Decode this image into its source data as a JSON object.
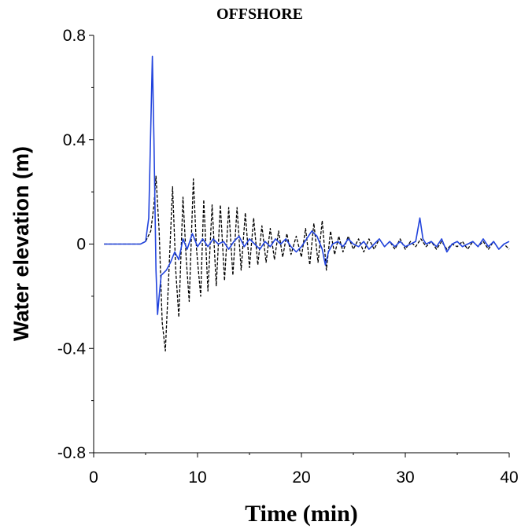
{
  "chart_data": {
    "type": "line",
    "title": "OFFSHORE",
    "xlabel": "Time (min)",
    "ylabel": "Water elevation (m)",
    "xlim": [
      0,
      40
    ],
    "ylim": [
      -0.8,
      0.8
    ],
    "xticks": [
      0,
      10,
      20,
      30,
      40
    ],
    "yticks": [
      -0.8,
      -0.4,
      0,
      0.4,
      0.8
    ],
    "ytick_labels": [
      "-0.8",
      "-0.4",
      "0",
      "0.4",
      "0.8"
    ],
    "xtick_labels": [
      "0",
      "10",
      "20",
      "30",
      "40"
    ],
    "grid": false,
    "legend": "none",
    "series": [
      {
        "style": "solid",
        "color": "#2244dd",
        "points": [
          [
            1.0,
            0.0
          ],
          [
            4.5,
            0.0
          ],
          [
            5.0,
            0.01
          ],
          [
            5.3,
            0.1
          ],
          [
            5.5,
            0.45
          ],
          [
            5.65,
            0.72
          ],
          [
            5.8,
            0.4
          ],
          [
            6.0,
            -0.1
          ],
          [
            6.15,
            -0.27
          ],
          [
            6.3,
            -0.2
          ],
          [
            6.5,
            -0.12
          ],
          [
            7.0,
            -0.1
          ],
          [
            7.4,
            -0.07
          ],
          [
            7.8,
            -0.03
          ],
          [
            8.2,
            -0.06
          ],
          [
            8.6,
            0.02
          ],
          [
            9.0,
            -0.02
          ],
          [
            9.5,
            0.04
          ],
          [
            10.0,
            -0.01
          ],
          [
            10.5,
            0.02
          ],
          [
            11.0,
            -0.01
          ],
          [
            11.5,
            0.02
          ],
          [
            12.0,
            0.0
          ],
          [
            12.5,
            0.01
          ],
          [
            13.0,
            -0.02
          ],
          [
            13.5,
            0.01
          ],
          [
            14.0,
            0.03
          ],
          [
            14.5,
            -0.01
          ],
          [
            15.0,
            0.02
          ],
          [
            15.5,
            0.0
          ],
          [
            16.0,
            -0.02
          ],
          [
            16.5,
            0.01
          ],
          [
            17.0,
            -0.01
          ],
          [
            17.5,
            0.02
          ],
          [
            18.0,
            0.0
          ],
          [
            18.5,
            0.02
          ],
          [
            19.0,
            -0.01
          ],
          [
            19.5,
            -0.03
          ],
          [
            20.0,
            -0.01
          ],
          [
            20.5,
            0.02
          ],
          [
            21.0,
            0.05
          ],
          [
            21.5,
            0.03
          ],
          [
            22.0,
            -0.02
          ],
          [
            22.3,
            -0.08
          ],
          [
            22.6,
            -0.03
          ],
          [
            23.0,
            0.0
          ],
          [
            23.5,
            0.01
          ],
          [
            24.0,
            -0.01
          ],
          [
            24.5,
            0.02
          ],
          [
            25.0,
            0.0
          ],
          [
            25.5,
            -0.01
          ],
          [
            26.0,
            0.01
          ],
          [
            26.5,
            -0.02
          ],
          [
            27.0,
            0.0
          ],
          [
            27.5,
            0.02
          ],
          [
            28.0,
            -0.01
          ],
          [
            28.5,
            0.01
          ],
          [
            29.0,
            -0.01
          ],
          [
            29.5,
            0.01
          ],
          [
            30.0,
            -0.01
          ],
          [
            30.5,
            0.0
          ],
          [
            31.0,
            0.01
          ],
          [
            31.4,
            0.1
          ],
          [
            31.7,
            0.02
          ],
          [
            32.0,
            0.0
          ],
          [
            32.5,
            0.01
          ],
          [
            33.0,
            -0.01
          ],
          [
            33.5,
            0.02
          ],
          [
            34.0,
            -0.03
          ],
          [
            34.5,
            0.0
          ],
          [
            35.0,
            0.01
          ],
          [
            35.5,
            -0.01
          ],
          [
            36.0,
            0.0
          ],
          [
            36.5,
            0.01
          ],
          [
            37.0,
            -0.01
          ],
          [
            37.5,
            0.02
          ],
          [
            38.0,
            -0.01
          ],
          [
            38.5,
            0.01
          ],
          [
            39.0,
            -0.02
          ],
          [
            39.5,
            0.0
          ],
          [
            40.0,
            0.01
          ]
        ]
      },
      {
        "style": "dashed",
        "color": "#000000",
        "points": [
          [
            1.0,
            0.0
          ],
          [
            4.5,
            0.0
          ],
          [
            5.0,
            0.01
          ],
          [
            5.5,
            0.05
          ],
          [
            5.8,
            0.15
          ],
          [
            6.0,
            0.26
          ],
          [
            6.3,
            0.05
          ],
          [
            6.6,
            -0.3
          ],
          [
            6.9,
            -0.41
          ],
          [
            7.2,
            -0.15
          ],
          [
            7.6,
            0.22
          ],
          [
            7.9,
            -0.1
          ],
          [
            8.2,
            -0.28
          ],
          [
            8.6,
            0.18
          ],
          [
            8.9,
            -0.05
          ],
          [
            9.2,
            -0.22
          ],
          [
            9.6,
            0.25
          ],
          [
            9.9,
            -0.02
          ],
          [
            10.3,
            -0.2
          ],
          [
            10.6,
            0.17
          ],
          [
            11.0,
            -0.18
          ],
          [
            11.4,
            0.15
          ],
          [
            11.8,
            -0.16
          ],
          [
            12.2,
            0.15
          ],
          [
            12.6,
            -0.14
          ],
          [
            13.0,
            0.14
          ],
          [
            13.4,
            -0.12
          ],
          [
            13.8,
            0.14
          ],
          [
            14.2,
            -0.1
          ],
          [
            14.6,
            0.12
          ],
          [
            15.0,
            -0.09
          ],
          [
            15.4,
            0.1
          ],
          [
            15.8,
            -0.08
          ],
          [
            16.2,
            0.07
          ],
          [
            16.6,
            -0.07
          ],
          [
            17.0,
            0.06
          ],
          [
            17.4,
            -0.06
          ],
          [
            17.8,
            0.05
          ],
          [
            18.2,
            -0.05
          ],
          [
            18.6,
            0.04
          ],
          [
            19.0,
            -0.04
          ],
          [
            19.5,
            0.03
          ],
          [
            20.0,
            -0.05
          ],
          [
            20.4,
            0.06
          ],
          [
            20.8,
            -0.08
          ],
          [
            21.2,
            0.08
          ],
          [
            21.6,
            -0.07
          ],
          [
            22.0,
            0.09
          ],
          [
            22.4,
            -0.1
          ],
          [
            22.8,
            0.05
          ],
          [
            23.2,
            -0.04
          ],
          [
            23.6,
            0.03
          ],
          [
            24.0,
            -0.03
          ],
          [
            24.5,
            0.03
          ],
          [
            25.0,
            -0.02
          ],
          [
            25.5,
            0.02
          ],
          [
            26.0,
            -0.03
          ],
          [
            26.5,
            0.02
          ],
          [
            27.0,
            -0.02
          ],
          [
            27.5,
            0.02
          ],
          [
            28.0,
            -0.01
          ],
          [
            28.5,
            0.01
          ],
          [
            29.0,
            -0.02
          ],
          [
            29.5,
            0.02
          ],
          [
            30.0,
            -0.02
          ],
          [
            30.5,
            0.01
          ],
          [
            31.0,
            -0.01
          ],
          [
            31.5,
            0.02
          ],
          [
            32.0,
            -0.01
          ],
          [
            32.5,
            0.01
          ],
          [
            33.0,
            -0.02
          ],
          [
            33.5,
            0.01
          ],
          [
            34.0,
            -0.02
          ],
          [
            34.5,
            0.0
          ],
          [
            35.0,
            -0.01
          ],
          [
            35.5,
            0.01
          ],
          [
            36.0,
            -0.02
          ],
          [
            36.5,
            0.01
          ],
          [
            37.0,
            -0.01
          ],
          [
            37.5,
            0.01
          ],
          [
            38.0,
            -0.02
          ],
          [
            38.5,
            0.01
          ],
          [
            39.0,
            -0.02
          ],
          [
            39.5,
            0.0
          ],
          [
            40.0,
            -0.02
          ]
        ]
      }
    ]
  }
}
